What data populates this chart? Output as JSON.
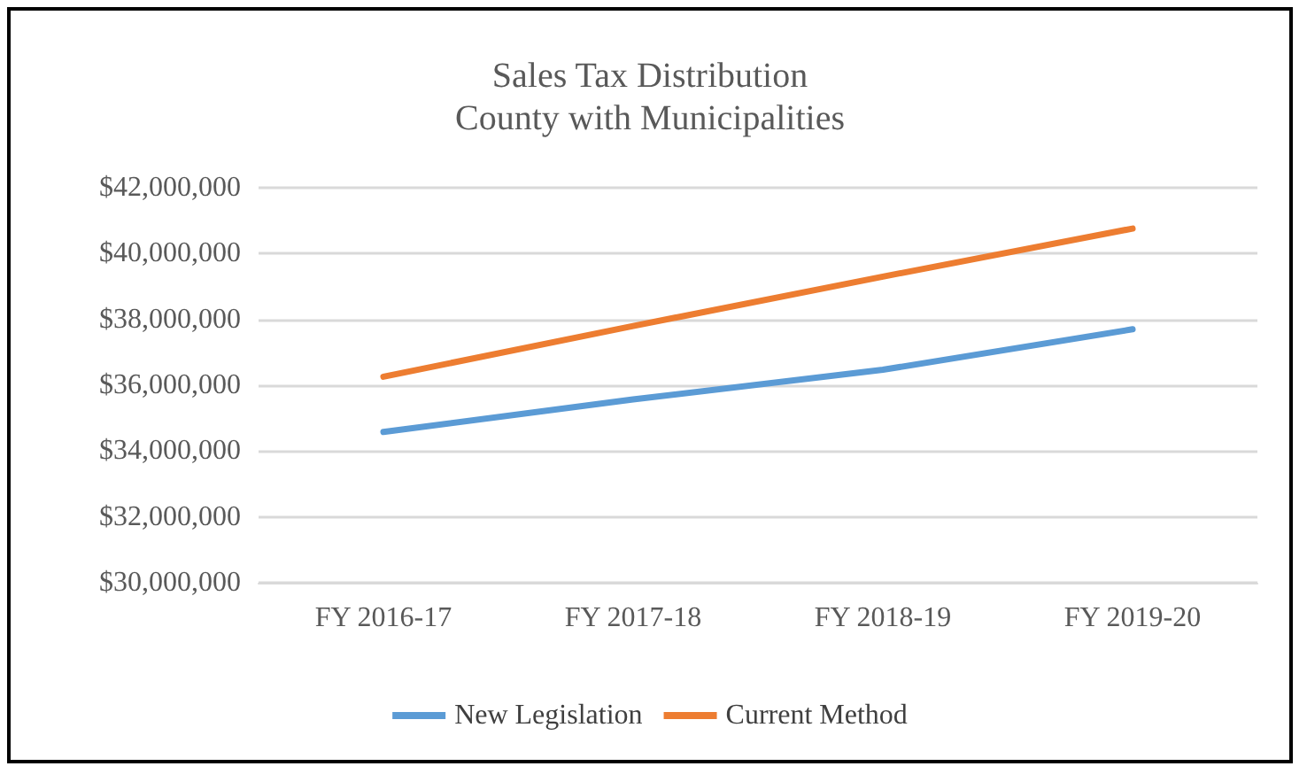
{
  "chart_data": {
    "type": "line",
    "title": "Sales Tax Distribution\nCounty with Municipalities",
    "categories": [
      "FY 2016-17",
      "FY 2017-18",
      "FY 2018-19",
      "FY 2019-20"
    ],
    "series": [
      {
        "name": "New Legislation",
        "color": "#5b9bd5",
        "values": [
          34580000,
          35570000,
          36470000,
          37700000
        ]
      },
      {
        "name": "Current Method",
        "color": "#ed7d31",
        "values": [
          36260000,
          37800000,
          39300000,
          40760000
        ]
      }
    ],
    "ylim": [
      30000000,
      42000000
    ],
    "yticks": [
      {
        "value": 30000000,
        "label": "$30,000,000"
      },
      {
        "value": 32000000,
        "label": "$32,000,000"
      },
      {
        "value": 34000000,
        "label": "$34,000,000"
      },
      {
        "value": 36000000,
        "label": "$36,000,000"
      },
      {
        "value": 38000000,
        "label": "$38,000,000"
      },
      {
        "value": 40000000,
        "label": "$40,000,000"
      },
      {
        "value": 42000000,
        "label": "$42,000,000"
      }
    ],
    "grid": "y",
    "legend": "bottom",
    "marker": "none",
    "line_style": "solid"
  }
}
